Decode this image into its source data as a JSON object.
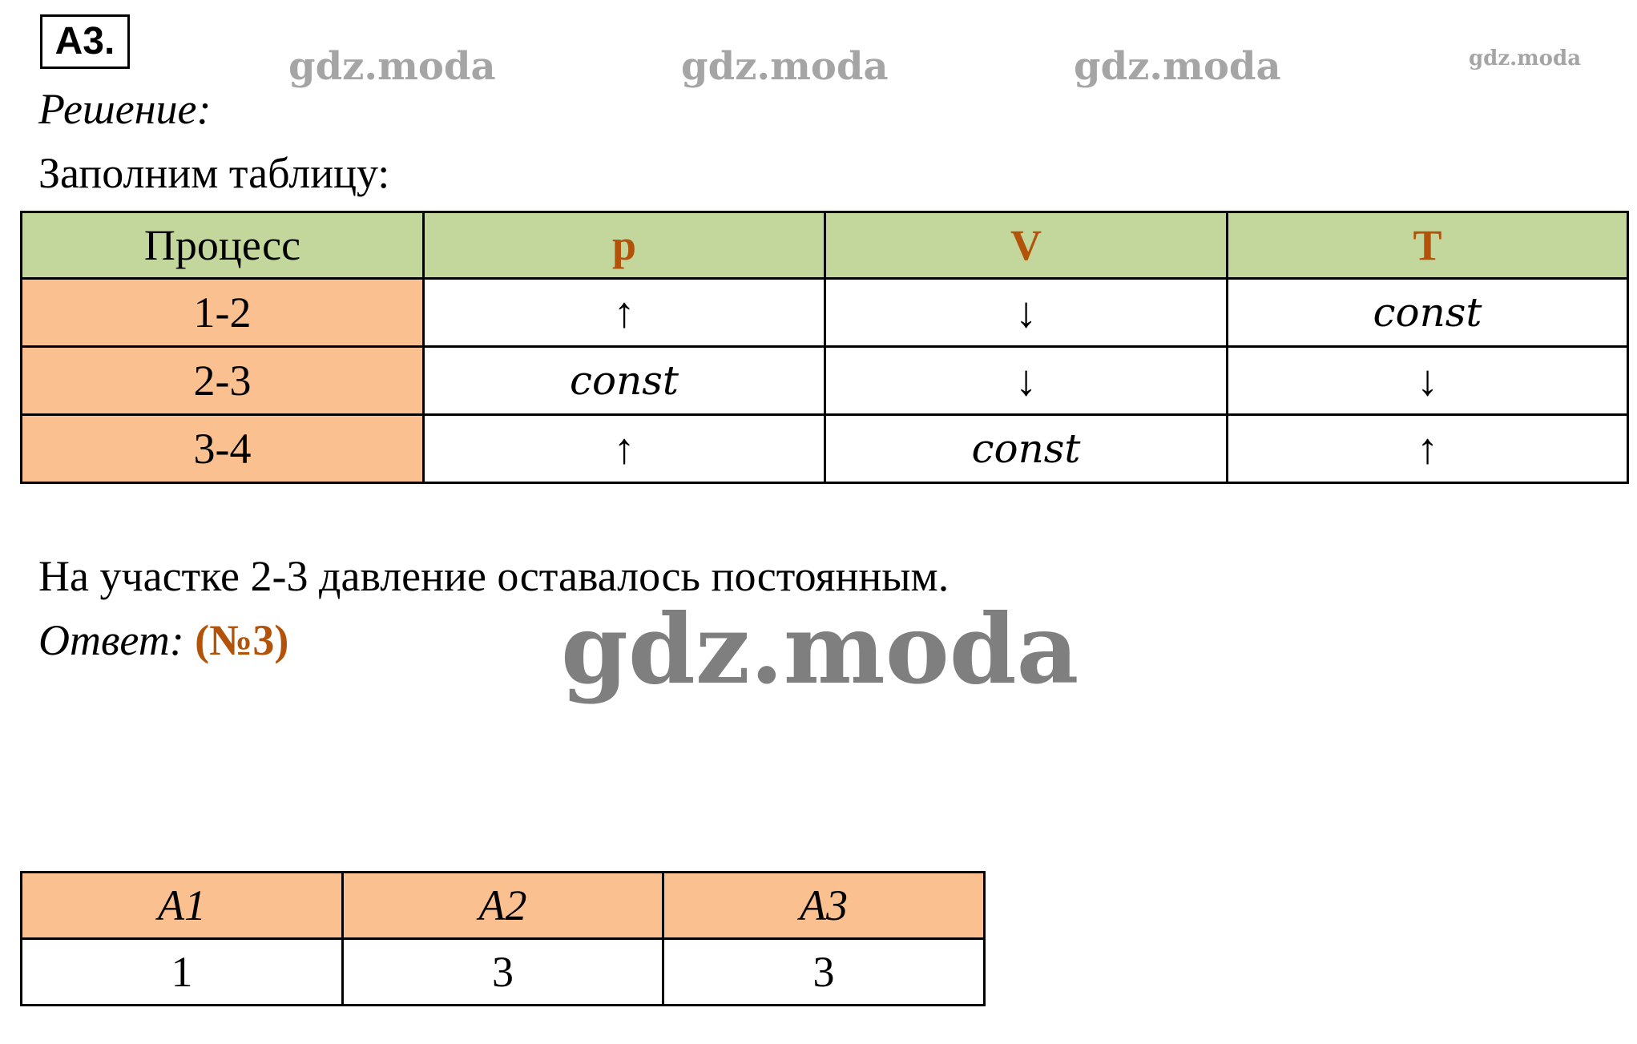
{
  "header": {
    "label": "А3.",
    "solution": "Решение:",
    "intro": "Заполним таблицу:"
  },
  "table": {
    "columns": [
      "Процесс",
      "p",
      "V",
      "T"
    ],
    "rows": [
      [
        "1-2",
        "↑",
        "↓",
        "const"
      ],
      [
        "2-3",
        "const",
        "↓",
        "↓"
      ],
      [
        "3-4",
        "↑",
        "const",
        "↑"
      ]
    ]
  },
  "conclusion": "На участке 2-3 давление оставалось постоянным.",
  "answer": {
    "label": "Ответ:",
    "value": "(№3)"
  },
  "summary": {
    "columns": [
      "A1",
      "A2",
      "A3"
    ],
    "values": [
      "1",
      "3",
      "3"
    ]
  },
  "watermarks": [
    "gdz.moda",
    "gdz.moda",
    "gdz.moda",
    "gdz.moda",
    "gdz.moda"
  ]
}
